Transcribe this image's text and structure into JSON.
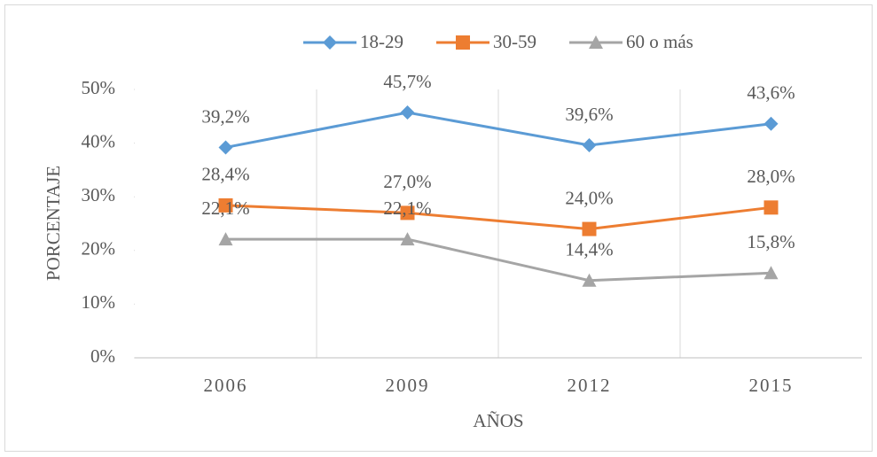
{
  "chart_data": {
    "type": "line",
    "x_label": "AÑOS",
    "y_label": "PORCENTAJE",
    "categories": [
      "2006",
      "2009",
      "2012",
      "2015"
    ],
    "series": [
      {
        "name": "18-29",
        "color": "#5b9bd5",
        "values": [
          39.2,
          45.7,
          39.6,
          43.6
        ],
        "value_labels": [
          "39,2%",
          "45,7%",
          "39,6%",
          "43,6%"
        ]
      },
      {
        "name": "30-59",
        "color": "#ed7d31",
        "values": [
          28.4,
          27.0,
          24.0,
          28.0
        ],
        "value_labels": [
          "28,4%",
          "27,0%",
          "24,0%",
          "28,0%"
        ]
      },
      {
        "name": "60 o más",
        "color": "#a5a5a5",
        "values": [
          22.1,
          22.1,
          14.4,
          15.8
        ],
        "value_labels": [
          "22,1%",
          "22,1%",
          "14,4%",
          "15,8%"
        ]
      }
    ],
    "ylim": [
      0,
      50
    ],
    "yticks": [
      {
        "value": 0,
        "label": "0%"
      },
      {
        "value": 10,
        "label": "10%"
      },
      {
        "value": 20,
        "label": "20%"
      },
      {
        "value": 30,
        "label": "30%"
      },
      {
        "value": 40,
        "label": "40%"
      },
      {
        "value": 50,
        "label": "50%"
      }
    ],
    "legend": "top"
  }
}
